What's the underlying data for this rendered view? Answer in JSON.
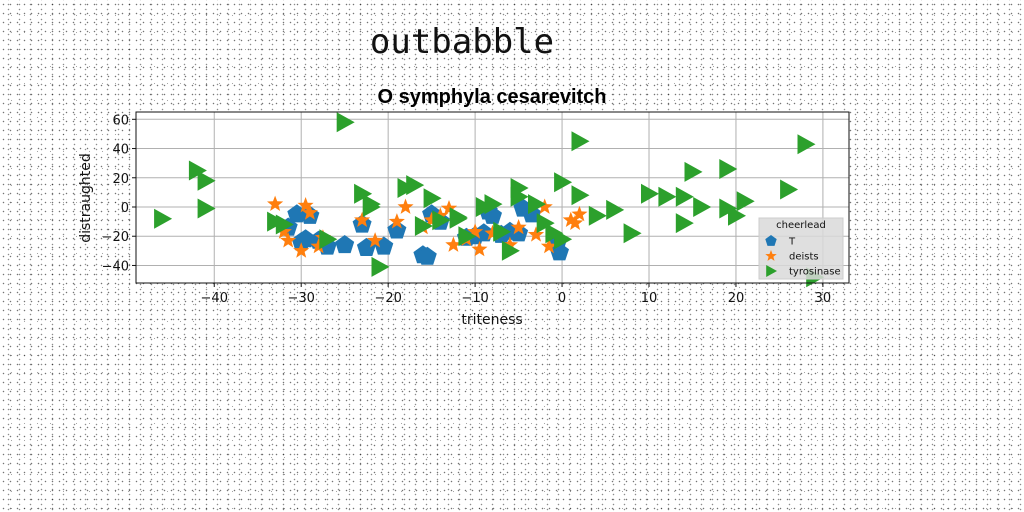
{
  "supertitle": "outbabble",
  "chart_data": {
    "type": "scatter",
    "title": "O symphyla cesarevitch",
    "xlabel": "triteness",
    "ylabel": "distraughted",
    "xlim": [
      -49,
      33
    ],
    "ylim": [
      -52,
      65
    ],
    "xticks": [
      -40,
      -30,
      -20,
      -10,
      0,
      10,
      20,
      30
    ],
    "yticks": [
      -40,
      -20,
      0,
      20,
      40,
      60
    ],
    "grid": true,
    "legend": {
      "title": "cheerlead",
      "placement": "lower-right"
    },
    "series": [
      {
        "name": "T",
        "marker": "pentagon",
        "color": "#1f77b4",
        "x": [
          -31.5,
          -30.5,
          -30,
          -29.5,
          -29,
          -28,
          -27,
          -25,
          -23,
          -22.5,
          -20.5,
          -19,
          -16,
          -15.5,
          -15,
          -14,
          -11,
          -10,
          -9,
          -8.5,
          -8,
          -7,
          -6,
          -5,
          -4.5,
          -3.5,
          -0.5,
          -0.3
        ],
        "y": [
          -14,
          -5,
          -24,
          -22,
          -6,
          -23,
          -27,
          -26,
          -12,
          -28,
          -27,
          -16,
          -33,
          -34,
          -5,
          -10,
          -21,
          -20,
          -18,
          -3,
          -6,
          -19,
          -17,
          -18,
          -1,
          -5,
          -24,
          -31
        ]
      },
      {
        "name": "deists",
        "marker": "star",
        "color": "#ff7f0e",
        "x": [
          -33,
          -32,
          -31.5,
          -30,
          -29.5,
          -29,
          -28,
          -27.5,
          -23,
          -21.5,
          -19,
          -18,
          -16,
          -15,
          -14,
          -13,
          -12.5,
          -11,
          -10,
          -9.5,
          -8,
          -6,
          -5,
          -3,
          -2,
          -1.5,
          1,
          1.5,
          2
        ],
        "y": [
          2,
          -17,
          -23,
          -30,
          1,
          -4,
          -27,
          -21,
          -9,
          -23,
          -10,
          0,
          -14,
          -9,
          -6,
          -1,
          -26,
          -22,
          -17,
          -29,
          -18,
          -26,
          -14,
          -19,
          0,
          -27,
          -9,
          -11,
          -5
        ]
      },
      {
        "name": "tyrosinase",
        "marker": "triangle-right",
        "color": "#2ca02c",
        "x": [
          -46,
          -42,
          -41,
          -41,
          -33,
          -32,
          -27,
          -25,
          -23,
          -22,
          -22,
          -21,
          -18,
          -17,
          -16,
          -15,
          -14,
          -12,
          -12,
          -11,
          -9,
          -8,
          -7,
          -6,
          -5,
          -5,
          -3,
          -2,
          -1,
          0,
          0,
          2,
          2,
          4,
          6,
          8,
          10,
          12,
          14,
          14,
          15,
          16,
          19,
          19,
          20,
          21,
          26,
          28,
          29
        ],
        "y": [
          -8,
          25,
          18,
          -1,
          -10,
          -12,
          -22,
          58,
          9,
          2,
          0,
          -41,
          13,
          15,
          -13,
          6,
          -9,
          -7,
          -8,
          -20,
          0,
          2,
          -17,
          -30,
          7,
          13,
          2,
          -11,
          -18,
          -22,
          17,
          8,
          45,
          -6,
          -2,
          -18,
          9,
          7,
          7,
          -11,
          24,
          0,
          26,
          -1,
          -6,
          4,
          12,
          43,
          -48
        ]
      }
    ]
  }
}
